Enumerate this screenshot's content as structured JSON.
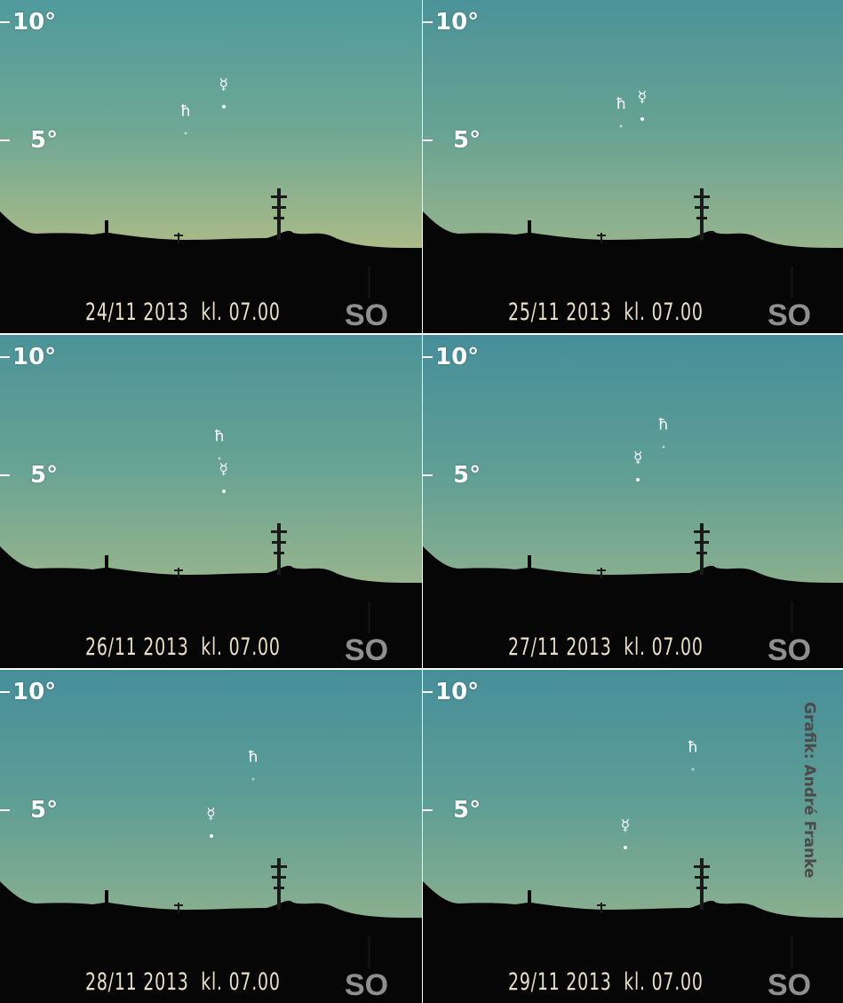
{
  "altitude_labels": [
    "10°",
    "5°"
  ],
  "direction_label": "SO",
  "credit": "Grafik: André Franke",
  "symbols": {
    "saturn": "ħ",
    "mercury": "☿"
  },
  "panels": [
    {
      "caption": "24/11 2013  kl. 07.00",
      "saturn_alt": 5.3,
      "mercury_alt": 6.4,
      "saturn_x": 0.44,
      "mercury_x": 0.53,
      "sky": "s1"
    },
    {
      "caption": "25/11 2013  kl. 07.00",
      "saturn_alt": 5.6,
      "mercury_alt": 5.9,
      "saturn_x": 0.47,
      "mercury_x": 0.52,
      "sky": "s2"
    },
    {
      "caption": "26/11 2013  kl. 07.00",
      "saturn_alt": 5.7,
      "mercury_alt": 4.3,
      "saturn_x": 0.52,
      "mercury_x": 0.53,
      "sky": "s2"
    },
    {
      "caption": "27/11 2013  kl. 07.00",
      "saturn_alt": 6.2,
      "mercury_alt": 4.8,
      "saturn_x": 0.57,
      "mercury_x": 0.51,
      "sky": "s3"
    },
    {
      "caption": "28/11 2013  kl. 07.00",
      "saturn_alt": 6.3,
      "mercury_alt": 3.9,
      "saturn_x": 0.6,
      "mercury_x": 0.5,
      "sky": "s3"
    },
    {
      "caption": "29/11 2013  kl. 07.00",
      "saturn_alt": 6.7,
      "mercury_alt": 3.4,
      "saturn_x": 0.64,
      "mercury_x": 0.48,
      "sky": "s3"
    }
  ]
}
